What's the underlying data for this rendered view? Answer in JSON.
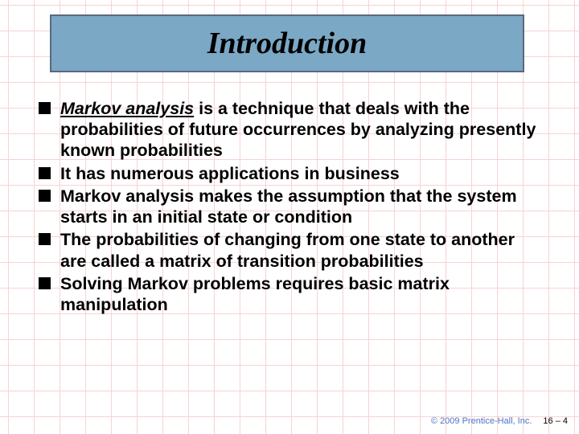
{
  "title": "Introduction",
  "bullets": [
    {
      "term": "Markov analysis",
      "rest": " is a technique that deals with the probabilities of future occurrences by analyzing presently known probabilities"
    },
    {
      "term": "",
      "rest": "It has numerous applications in business"
    },
    {
      "term": "",
      "rest": "Markov analysis makes the assumption that the system starts in an initial state or condition"
    },
    {
      "term": "",
      "rest": "The probabilities of changing from one state to another are called a matrix of transition probabilities"
    },
    {
      "term": "",
      "rest": "Solving Markov problems requires basic matrix manipulation"
    }
  ],
  "footer": {
    "copyright": "© 2009 Prentice-Hall, Inc.",
    "pagenum": "16 – 4"
  },
  "style": {
    "banner_bg": "#7ba8c4",
    "banner_border": "#5a6880",
    "grid_color": "#f4b0b0",
    "bullet_color": "#000000",
    "text_color": "#000000",
    "copyright_color": "#4a74c9",
    "title_fontsize": 38,
    "body_fontsize": 21.5
  }
}
